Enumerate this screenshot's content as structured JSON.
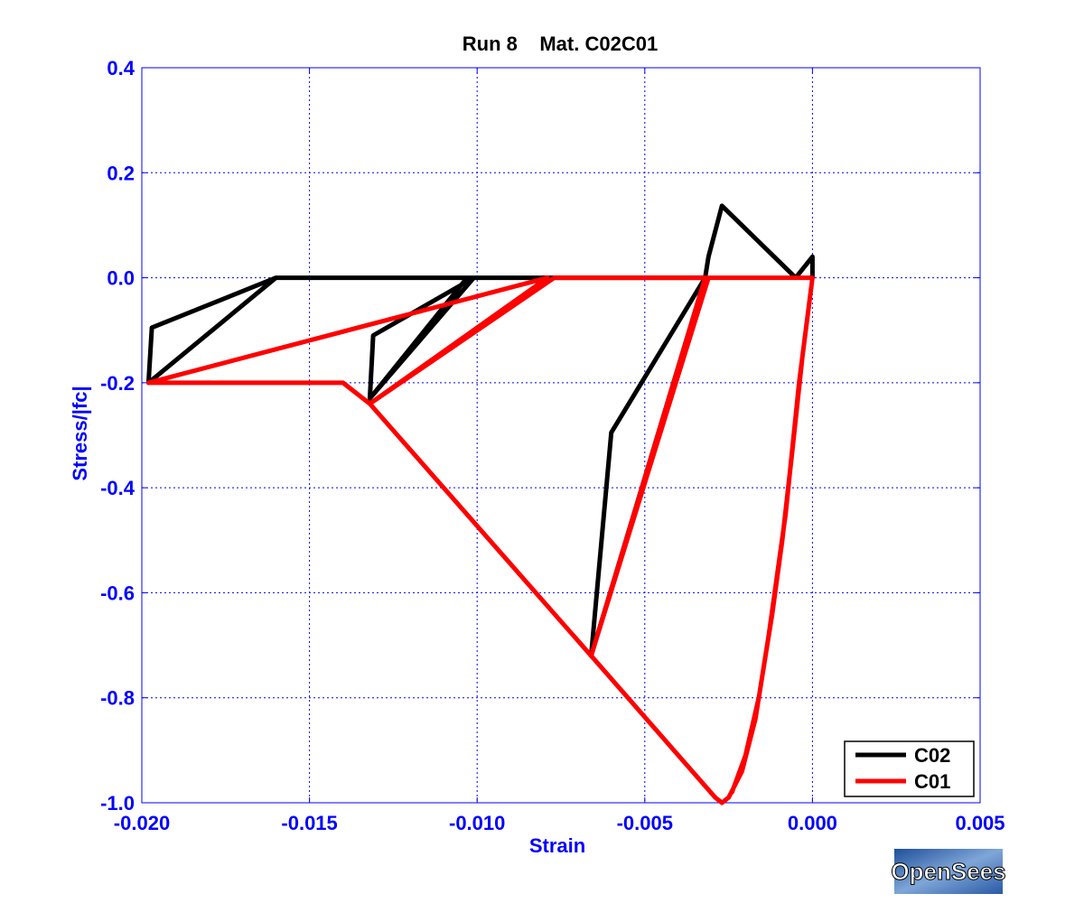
{
  "chart_data": {
    "type": "line",
    "title": "Run 8    Mat. C02C01",
    "xlabel": "Strain",
    "ylabel": "Stress/|fc|",
    "xlim": [
      -0.02,
      0.005
    ],
    "ylim": [
      -1.0,
      0.4
    ],
    "xticks": [
      -0.02,
      -0.015,
      -0.01,
      -0.005,
      0.0,
      0.005
    ],
    "xtick_labels": [
      "-0.020",
      "-0.015",
      "-0.010",
      "-0.005",
      "0.000",
      "0.005"
    ],
    "yticks": [
      -1.0,
      -0.8,
      -0.6,
      -0.4,
      -0.2,
      0.0,
      0.2,
      0.4
    ],
    "ytick_labels": [
      "-1.0",
      "-0.8",
      "-0.6",
      "-0.4",
      "-0.2",
      "0.0",
      "0.2",
      "0.4"
    ],
    "grid": true,
    "legend_position": "bottom-right",
    "series": [
      {
        "name": "C02",
        "color": "#000000",
        "points": [
          [
            0.0,
            0.0
          ],
          [
            0.0,
            0.04
          ],
          [
            -0.0005,
            0.0
          ],
          [
            -0.0027,
            0.137
          ],
          [
            -0.0031,
            0.04
          ],
          [
            -0.0032,
            0.0
          ],
          [
            -0.006,
            -0.295
          ],
          [
            -0.0066,
            -0.72
          ],
          [
            -0.0032,
            0.0
          ],
          [
            -0.0075,
            0.0
          ],
          [
            -0.0103,
            0.0
          ],
          [
            -0.0132,
            -0.23
          ],
          [
            -0.0131,
            -0.11
          ],
          [
            -0.0101,
            0.0
          ],
          [
            -0.0132,
            -0.23
          ],
          [
            -0.0103,
            0.0
          ],
          [
            -0.016,
            0.0
          ],
          [
            -0.0198,
            -0.2
          ],
          [
            -0.0197,
            -0.095
          ],
          [
            -0.016,
            0.0
          ],
          [
            -0.0198,
            -0.2
          ]
        ]
      },
      {
        "name": "C01",
        "color": "#ff0000",
        "points": [
          [
            0.0,
            0.0
          ],
          [
            -0.0004,
            -0.2
          ],
          [
            -0.0008,
            -0.45
          ],
          [
            -0.0013,
            -0.68
          ],
          [
            -0.0017,
            -0.84
          ],
          [
            -0.0021,
            -0.94
          ],
          [
            -0.0025,
            -0.99
          ],
          [
            -0.0027,
            -1.0
          ],
          [
            -0.0029,
            -0.99
          ],
          [
            -0.0066,
            -0.72
          ],
          [
            -0.0132,
            -0.24
          ],
          [
            -0.014,
            -0.2
          ],
          [
            -0.0198,
            -0.2
          ],
          [
            -0.0079,
            0.0
          ],
          [
            -0.0132,
            -0.24
          ],
          [
            -0.0077,
            0.0
          ],
          [
            -0.0005,
            0.0
          ],
          [
            0.0,
            0.0
          ],
          [
            -0.0032,
            0.0
          ],
          [
            -0.0066,
            -0.72
          ],
          [
            -0.0031,
            0.0
          ],
          [
            0.0,
            0.0
          ],
          [
            -0.0003,
            -0.15
          ],
          [
            -0.0006,
            -0.33
          ],
          [
            -0.0009,
            -0.5
          ],
          [
            -0.0012,
            -0.64
          ],
          [
            -0.0016,
            -0.8
          ],
          [
            -0.002,
            -0.91
          ],
          [
            -0.0024,
            -0.98
          ]
        ]
      }
    ]
  },
  "logo": {
    "text": "OpenSees",
    "color": "#3a6fb3"
  }
}
